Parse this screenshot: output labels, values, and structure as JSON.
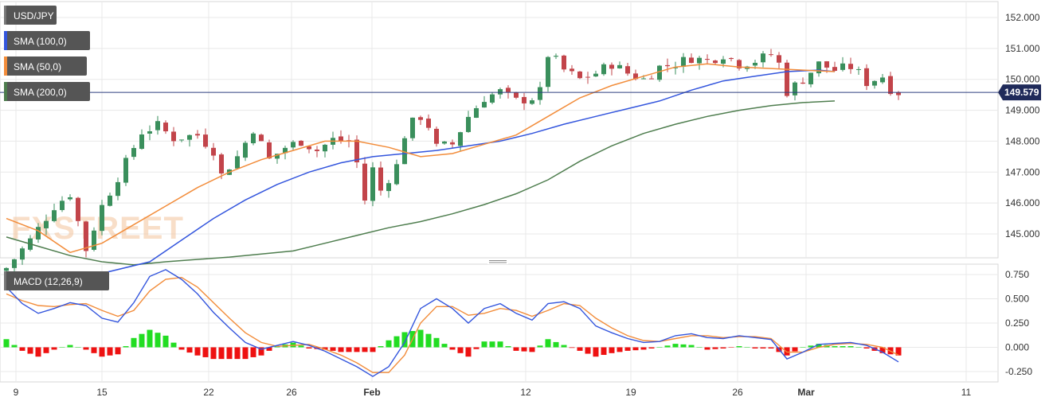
{
  "chart_data": [
    {
      "type": "candlestick",
      "symbol": "USD/JPY",
      "last_price_label": "149.579",
      "last_price": 149.579,
      "y_ticks": [
        "152.000",
        "151.000",
        "150.000",
        "149.000",
        "148.000",
        "147.000",
        "146.000",
        "145.000"
      ],
      "ylim": [
        144.0,
        152.5
      ],
      "x_ticks": [
        "9",
        "15",
        "22",
        "26",
        "Feb",
        "12",
        "19",
        "26",
        "Mar",
        "11"
      ],
      "indicators": [
        {
          "name": "SMA (100,0)",
          "color": "#3355dd"
        },
        {
          "name": "SMA (50,0)",
          "color": "#f28c3a"
        },
        {
          "name": "SMA (200,0)",
          "color": "#4e7d4e"
        }
      ],
      "sma50": [
        [
          0,
          145.5
        ],
        [
          4,
          145.1
        ],
        [
          8,
          144.4
        ],
        [
          12,
          144.7
        ],
        [
          16,
          145.3
        ],
        [
          20,
          145.9
        ],
        [
          24,
          146.5
        ],
        [
          28,
          147.0
        ],
        [
          32,
          147.4
        ],
        [
          36,
          147.7
        ],
        [
          40,
          148.0
        ],
        [
          44,
          148.0
        ],
        [
          48,
          147.8
        ],
        [
          52,
          147.5
        ],
        [
          56,
          147.6
        ],
        [
          60,
          147.9
        ],
        [
          64,
          148.2
        ],
        [
          68,
          148.8
        ],
        [
          72,
          149.4
        ],
        [
          76,
          149.8
        ],
        [
          80,
          150.1
        ],
        [
          84,
          150.4
        ],
        [
          88,
          150.5
        ],
        [
          92,
          150.4
        ],
        [
          96,
          150.35
        ],
        [
          100,
          150.3
        ],
        [
          104,
          150.25
        ]
      ],
      "sma100": [
        [
          0,
          143.5
        ],
        [
          10,
          143.6
        ],
        [
          18,
          144.1
        ],
        [
          22,
          144.8
        ],
        [
          26,
          145.5
        ],
        [
          30,
          146.1
        ],
        [
          34,
          146.6
        ],
        [
          38,
          147.0
        ],
        [
          42,
          147.3
        ],
        [
          46,
          147.5
        ],
        [
          50,
          147.6
        ],
        [
          54,
          147.7
        ],
        [
          58,
          147.85
        ],
        [
          62,
          148.0
        ],
        [
          66,
          148.25
        ],
        [
          70,
          148.55
        ],
        [
          74,
          148.8
        ],
        [
          78,
          149.05
        ],
        [
          82,
          149.3
        ],
        [
          86,
          149.65
        ],
        [
          90,
          149.95
        ],
        [
          94,
          150.1
        ],
        [
          98,
          150.25
        ],
        [
          102,
          150.3
        ],
        [
          104,
          150.25
        ]
      ],
      "sma200": [
        [
          0,
          144.9
        ],
        [
          4,
          144.6
        ],
        [
          8,
          144.3
        ],
        [
          12,
          144.1
        ],
        [
          16,
          144.0
        ],
        [
          20,
          144.1
        ],
        [
          28,
          144.25
        ],
        [
          36,
          144.45
        ],
        [
          40,
          144.7
        ],
        [
          44,
          144.95
        ],
        [
          48,
          145.2
        ],
        [
          52,
          145.4
        ],
        [
          56,
          145.65
        ],
        [
          60,
          145.95
        ],
        [
          64,
          146.3
        ],
        [
          68,
          146.75
        ],
        [
          72,
          147.35
        ],
        [
          76,
          147.85
        ],
        [
          80,
          148.25
        ],
        [
          84,
          148.55
        ],
        [
          88,
          148.8
        ],
        [
          92,
          149.0
        ],
        [
          96,
          149.15
        ],
        [
          100,
          149.25
        ],
        [
          104,
          149.3
        ]
      ],
      "close_path": [
        [
          0,
          143.9
        ],
        [
          3,
          144.8
        ],
        [
          6,
          145.9
        ],
        [
          8,
          146.3
        ],
        [
          10,
          144.5
        ],
        [
          12,
          145.9
        ],
        [
          15,
          147.3
        ],
        [
          17,
          148.3
        ],
        [
          19,
          148.5
        ],
        [
          21,
          148.1
        ],
        [
          24,
          148.2
        ],
        [
          26,
          147.7
        ],
        [
          27,
          146.9
        ],
        [
          29,
          147.5
        ],
        [
          31,
          148.4
        ],
        [
          33,
          147.4
        ],
        [
          35,
          147.8
        ],
        [
          37,
          148.0
        ],
        [
          39,
          147.7
        ],
        [
          41,
          148.05
        ],
        [
          43,
          148.0
        ],
        [
          44,
          147.3
        ],
        [
          45,
          146.1
        ],
        [
          46,
          147.1
        ],
        [
          47,
          146.4
        ],
        [
          48,
          146.8
        ],
        [
          49,
          147.2
        ],
        [
          50,
          148.2
        ],
        [
          51,
          148.6
        ],
        [
          52,
          148.8
        ],
        [
          53,
          148.5
        ],
        [
          54,
          147.8
        ],
        [
          56,
          147.9
        ],
        [
          58,
          148.8
        ],
        [
          60,
          149.4
        ],
        [
          62,
          149.6
        ],
        [
          64,
          149.3
        ],
        [
          66,
          149.4
        ],
        [
          67,
          149.6
        ],
        [
          68,
          150.8
        ],
        [
          69,
          150.6
        ],
        [
          70,
          150.3
        ],
        [
          72,
          150.0
        ],
        [
          74,
          150.2
        ],
        [
          76,
          150.5
        ],
        [
          78,
          150.2
        ],
        [
          80,
          150.0
        ],
        [
          82,
          150.4
        ],
        [
          84,
          150.5
        ],
        [
          86,
          150.7
        ],
        [
          88,
          150.6
        ],
        [
          90,
          150.8
        ],
        [
          92,
          150.5
        ],
        [
          94,
          150.6
        ],
        [
          96,
          150.8
        ],
        [
          97,
          150.5
        ],
        [
          98,
          149.6
        ],
        [
          100,
          150.0
        ],
        [
          102,
          150.5
        ],
        [
          104,
          150.3
        ],
        [
          106,
          150.4
        ],
        [
          107,
          150.2
        ],
        [
          108,
          149.9
        ],
        [
          110,
          150.1
        ],
        [
          111,
          149.7
        ],
        [
          112,
          149.58
        ]
      ],
      "sub_chart": {
        "type": "macd",
        "label": "MACD (12,26,9)",
        "y_ticks": [
          "0.750",
          "0.500",
          "0.250",
          "0.000",
          "-0.250"
        ],
        "ylim": [
          -0.32,
          0.82
        ],
        "macd": [
          [
            0,
            0.62
          ],
          [
            2,
            0.45
          ],
          [
            4,
            0.35
          ],
          [
            6,
            0.4
          ],
          [
            8,
            0.46
          ],
          [
            10,
            0.43
          ],
          [
            12,
            0.3
          ],
          [
            14,
            0.26
          ],
          [
            16,
            0.46
          ],
          [
            18,
            0.73
          ],
          [
            20,
            0.8
          ],
          [
            22,
            0.7
          ],
          [
            24,
            0.55
          ],
          [
            26,
            0.36
          ],
          [
            28,
            0.2
          ],
          [
            30,
            0.05
          ],
          [
            32,
            -0.02
          ],
          [
            34,
            0.02
          ],
          [
            36,
            0.06
          ],
          [
            38,
            0.02
          ],
          [
            40,
            -0.04
          ],
          [
            42,
            -0.12
          ],
          [
            44,
            -0.2
          ],
          [
            46,
            -0.3
          ],
          [
            48,
            -0.2
          ],
          [
            50,
            0.05
          ],
          [
            52,
            0.4
          ],
          [
            54,
            0.5
          ],
          [
            56,
            0.4
          ],
          [
            58,
            0.25
          ],
          [
            60,
            0.4
          ],
          [
            62,
            0.45
          ],
          [
            64,
            0.35
          ],
          [
            66,
            0.28
          ],
          [
            68,
            0.45
          ],
          [
            70,
            0.47
          ],
          [
            72,
            0.4
          ],
          [
            74,
            0.22
          ],
          [
            76,
            0.15
          ],
          [
            78,
            0.09
          ],
          [
            80,
            0.05
          ],
          [
            82,
            0.06
          ],
          [
            84,
            0.12
          ],
          [
            86,
            0.14
          ],
          [
            88,
            0.1
          ],
          [
            90,
            0.09
          ],
          [
            92,
            0.12
          ],
          [
            94,
            0.1
          ],
          [
            96,
            0.08
          ],
          [
            98,
            -0.12
          ],
          [
            100,
            -0.05
          ],
          [
            102,
            0.03
          ],
          [
            104,
            0.04
          ],
          [
            106,
            0.05
          ],
          [
            108,
            0.02
          ],
          [
            110,
            -0.05
          ],
          [
            112,
            -0.15
          ]
        ],
        "signal": [
          [
            0,
            0.55
          ],
          [
            2,
            0.48
          ],
          [
            4,
            0.43
          ],
          [
            6,
            0.42
          ],
          [
            8,
            0.44
          ],
          [
            10,
            0.45
          ],
          [
            12,
            0.38
          ],
          [
            14,
            0.32
          ],
          [
            16,
            0.38
          ],
          [
            18,
            0.58
          ],
          [
            20,
            0.7
          ],
          [
            22,
            0.72
          ],
          [
            24,
            0.62
          ],
          [
            26,
            0.46
          ],
          [
            28,
            0.3
          ],
          [
            30,
            0.15
          ],
          [
            32,
            0.05
          ],
          [
            34,
            0.01
          ],
          [
            36,
            0.02
          ],
          [
            38,
            0.03
          ],
          [
            40,
            -0.02
          ],
          [
            42,
            -0.08
          ],
          [
            44,
            -0.16
          ],
          [
            46,
            -0.26
          ],
          [
            48,
            -0.26
          ],
          [
            50,
            -0.08
          ],
          [
            52,
            0.25
          ],
          [
            54,
            0.42
          ],
          [
            56,
            0.42
          ],
          [
            58,
            0.33
          ],
          [
            60,
            0.35
          ],
          [
            62,
            0.4
          ],
          [
            64,
            0.38
          ],
          [
            66,
            0.32
          ],
          [
            68,
            0.38
          ],
          [
            70,
            0.45
          ],
          [
            72,
            0.43
          ],
          [
            74,
            0.3
          ],
          [
            76,
            0.2
          ],
          [
            78,
            0.12
          ],
          [
            80,
            0.07
          ],
          [
            82,
            0.06
          ],
          [
            84,
            0.09
          ],
          [
            86,
            0.12
          ],
          [
            88,
            0.12
          ],
          [
            90,
            0.1
          ],
          [
            92,
            0.11
          ],
          [
            94,
            0.11
          ],
          [
            96,
            0.09
          ],
          [
            98,
            -0.05
          ],
          [
            100,
            -0.05
          ],
          [
            102,
            0.0
          ],
          [
            104,
            0.03
          ],
          [
            106,
            0.04
          ],
          [
            108,
            0.03
          ],
          [
            110,
            0.0
          ],
          [
            112,
            -0.08
          ]
        ]
      }
    }
  ],
  "watermark": "FXSTREET",
  "colors": {
    "bull": "#3a8f5c",
    "bear": "#c2444a",
    "hist_pos": "#22dd22",
    "hist_neg": "#ee1111",
    "grid": "#e8e8e8",
    "price_line": "#2f3f7f"
  }
}
